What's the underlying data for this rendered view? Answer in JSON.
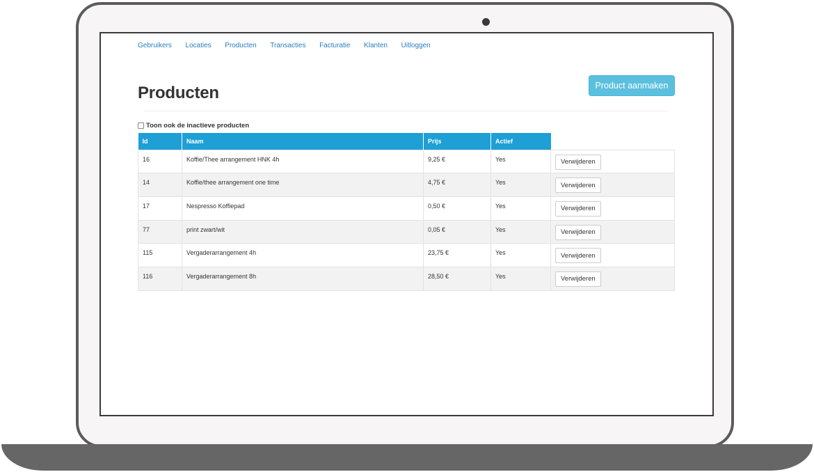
{
  "nav": {
    "items": [
      "Gebruikers",
      "Locaties",
      "Producten",
      "Transacties",
      "Facturatie",
      "Klanten",
      "Uitloggen"
    ]
  },
  "page": {
    "title": "Producten",
    "create_button": "Product aanmaken",
    "filter_label": "Toon ook de inactieve producten",
    "filter_checked": false
  },
  "table": {
    "headers": [
      "Id",
      "Naam",
      "Prijs",
      "Actief"
    ],
    "delete_label": "Verwijderen",
    "rows": [
      {
        "id": "16",
        "name": "Koffie/Thee arrangement HNK 4h",
        "price": "9,25 €",
        "active": "Yes"
      },
      {
        "id": "14",
        "name": "Koffie/thee arrangement one time",
        "price": "4,75 €",
        "active": "Yes"
      },
      {
        "id": "17",
        "name": "Nespresso Koffiepad",
        "price": "0,50 €",
        "active": "Yes"
      },
      {
        "id": "77",
        "name": "print zwart/wit",
        "price": "0,05 €",
        "active": "Yes"
      },
      {
        "id": "115",
        "name": "Vergaderarrangement 4h",
        "price": "23,75 €",
        "active": "Yes"
      },
      {
        "id": "116",
        "name": "Vergaderarrangement 8h",
        "price": "28,50 €",
        "active": "Yes"
      }
    ]
  },
  "colors": {
    "header_blue": "#1e9fd6",
    "button_info": "#5bc0de",
    "link_blue": "#2a7dbf",
    "device_gray": "#666666"
  }
}
